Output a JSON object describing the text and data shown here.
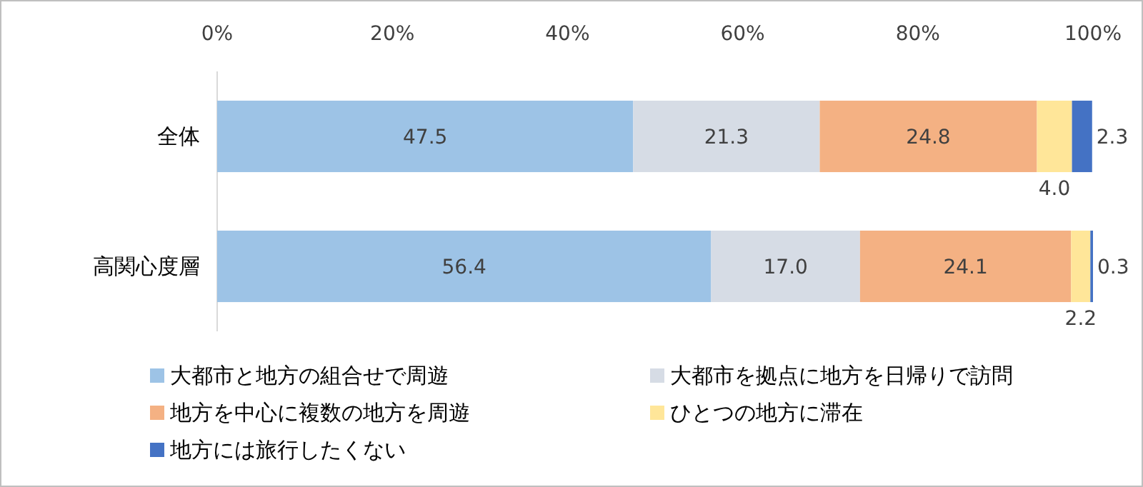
{
  "chart_data": {
    "type": "bar",
    "orientation": "horizontal",
    "stacked": true,
    "categories": [
      "全体",
      "高関心度層"
    ],
    "series": [
      {
        "name": "大都市と地方の組合せで周遊",
        "color": "#9dc3e6",
        "values": [
          47.5,
          56.4
        ]
      },
      {
        "name": "大都市を拠点に地方を日帰りで訪問",
        "color": "#d6dce5",
        "values": [
          21.3,
          17.0
        ],
        "value_labels": [
          "21.3",
          "17.0"
        ]
      },
      {
        "name": "地方を中心に複数の地方を周遊",
        "color": "#f4b183",
        "values": [
          24.8,
          24.1
        ]
      },
      {
        "name": "ひとつの地方に滞在",
        "color": "#ffe699",
        "values": [
          4.0,
          2.2
        ],
        "value_labels": [
          "4.0",
          "2.2"
        ]
      },
      {
        "name": "地方には旅行したくない",
        "color": "#4472c4",
        "values": [
          2.3,
          0.3
        ]
      }
    ],
    "xlim": [
      0,
      100
    ],
    "xticks": [
      {
        "value": 0,
        "label": "0%"
      },
      {
        "value": 20,
        "label": "20%"
      },
      {
        "value": 40,
        "label": "40%"
      },
      {
        "value": 60,
        "label": "60%"
      },
      {
        "value": 80,
        "label": "80%"
      },
      {
        "value": 100,
        "label": "100%"
      }
    ],
    "data_labels": true,
    "legend": "bottom"
  }
}
